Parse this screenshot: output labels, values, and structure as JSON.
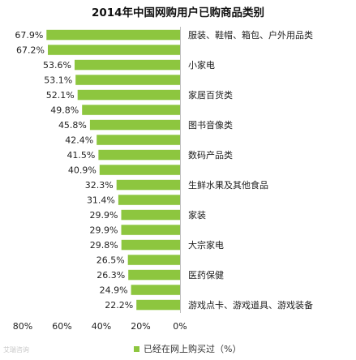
{
  "title": "2014年中国网购用户已购商品类别",
  "watermark": "艾瑞咨询",
  "legend": {
    "label": "已经在网上购买过（%）"
  },
  "colors": {
    "bar": "#8DC63F",
    "axis": "#bfbfbf",
    "text": "#333333"
  },
  "chart_data": {
    "type": "bar",
    "orientation": "horizontal",
    "x_reversed": true,
    "xlim": [
      0,
      80
    ],
    "xticks": [
      80,
      60,
      40,
      20,
      0
    ],
    "tick_labels": [
      "80%",
      "60%",
      "40%",
      "20%",
      "0%"
    ],
    "series": [
      {
        "name": "已经在网上购买过（%）",
        "values": [
          67.9,
          67.2,
          53.6,
          53.1,
          52.1,
          49.8,
          45.8,
          42.4,
          41.5,
          40.9,
          32.3,
          31.4,
          29.9,
          29.9,
          29.8,
          26.5,
          26.3,
          24.9,
          22.2
        ],
        "data_labels": [
          "67.9%",
          "67.2%",
          "53.6%",
          "53.1%",
          "52.1%",
          "49.8%",
          "45.8%",
          "42.4%",
          "41.5%",
          "40.9%",
          "32.3%",
          "31.4%",
          "29.9%",
          "29.9%",
          "29.8%",
          "26.5%",
          "26.3%",
          "24.9%",
          "22.2%"
        ]
      }
    ],
    "category_labels": [
      {
        "bar_index": 0,
        "text": "服装、鞋帽、箱包、户外用品类"
      },
      {
        "bar_index": 2,
        "text": "小家电"
      },
      {
        "bar_index": 4,
        "text": "家居百货类"
      },
      {
        "bar_index": 6,
        "text": "图书音像类"
      },
      {
        "bar_index": 8,
        "text": "数码产品类"
      },
      {
        "bar_index": 10,
        "text": "生鲜水果及其他食品"
      },
      {
        "bar_index": 12,
        "text": "家装"
      },
      {
        "bar_index": 14,
        "text": "大宗家电"
      },
      {
        "bar_index": 16,
        "text": "医药保健"
      },
      {
        "bar_index": 18,
        "text": "游戏点卡、游戏道具、游戏装备"
      }
    ]
  }
}
